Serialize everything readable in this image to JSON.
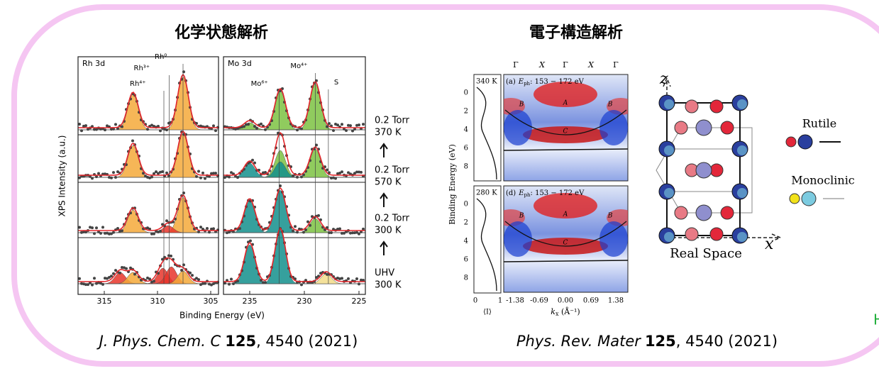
{
  "left_panel": {
    "title": "化学状態解析",
    "figure": {
      "y_label": "XPS Intensity (a.u.)",
      "x_label": "Binding Energy (eV)",
      "panels": [
        {
          "label": "Rh 3d",
          "xticks": [
            "315",
            "310",
            "305"
          ],
          "peaks": [
            "Rh⁴⁺",
            "Rh³⁺",
            "Rh⁰"
          ]
        },
        {
          "label": "Mo 3d",
          "xticks": [
            "235",
            "230",
            "225"
          ],
          "peaks": [
            "Mo⁶⁺",
            "Mo⁴⁺",
            "S"
          ]
        }
      ],
      "conditions": [
        {
          "line1": "0.2 Torr",
          "line2": "370 K"
        },
        {
          "line1": "0.2 Torr",
          "line2": "570 K"
        },
        {
          "line1": "0.2 Torr",
          "line2": "300 K"
        },
        {
          "line1": "UHV",
          "line2": "300 K"
        }
      ]
    },
    "citation": {
      "journal": "J. Phys. Chem. C",
      "volume": "125",
      "rest": ", 4540 (2021)"
    }
  },
  "right_panel": {
    "title": "電子構造解析",
    "figure": {
      "top_labels": [
        "Γ",
        "X",
        "Γ",
        "X",
        "Γ"
      ],
      "y_label": "Binding Energy (eV)",
      "yticks": [
        "0",
        "2",
        "4",
        "6",
        "8"
      ],
      "panels": [
        {
          "temp": "340 K",
          "prefix": "(a)",
          "symbol": "E",
          "subscript": "ph",
          "range": ":  153 − 172 eV"
        },
        {
          "temp": "280 K",
          "prefix": "(d)",
          "symbol": "E",
          "subscript": "ph",
          "range": ":  153 − 172 eV"
        }
      ],
      "band_labels": [
        "A",
        "B",
        "B",
        "C"
      ],
      "xticks": [
        "-1.38",
        "-0.69",
        "0.00",
        "0.69",
        "1.38"
      ],
      "x_symbol": "k",
      "x_sub": "x",
      "x_unit": " (Å⁻¹)",
      "profile_ticks": [
        "0",
        "1"
      ],
      "profile_label": "⟨I⟩",
      "real_space": {
        "z": "z",
        "x": "x",
        "label": "Real Space"
      },
      "legend": [
        "Rutile",
        "Monoclinic"
      ]
    },
    "citation": {
      "journal": "Phys. Rev. Mater",
      "volume": "125",
      "rest": ", 4540 (2021)"
    }
  },
  "edge_fragment": "H"
}
